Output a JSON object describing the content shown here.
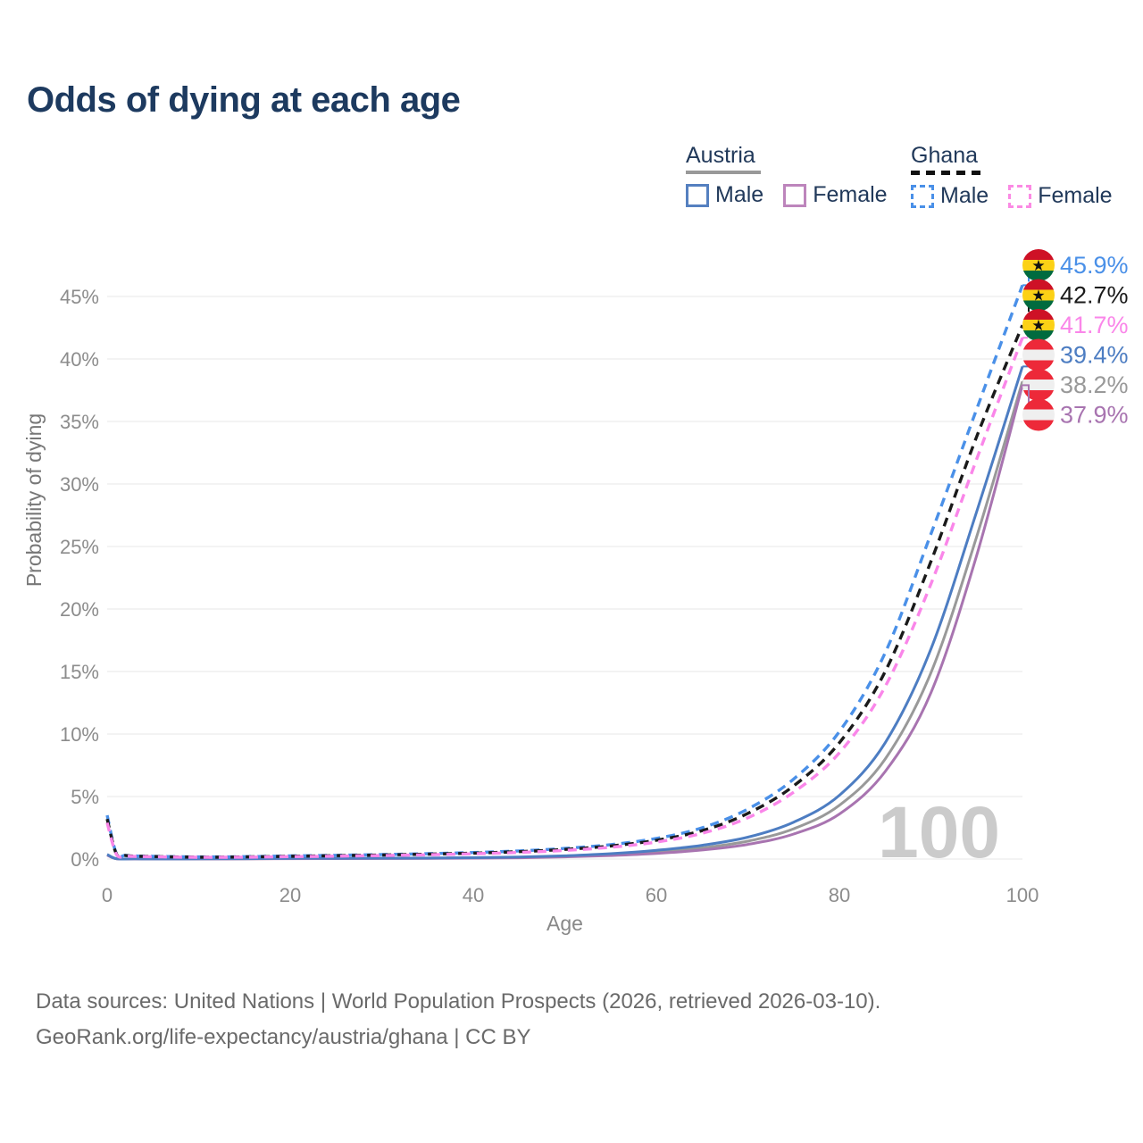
{
  "title": "Odds of dying at each age",
  "legend": {
    "groups": [
      {
        "country": "Austria",
        "line_style": "solid",
        "underline_color": "#999999",
        "items": [
          {
            "label": "Male",
            "color": "#5580c0"
          },
          {
            "label": "Female",
            "color": "#bd85bc"
          }
        ]
      },
      {
        "country": "Ghana",
        "line_style": "dashed",
        "underline_color": "#111111",
        "items": [
          {
            "label": "Male",
            "color": "#4a90e8"
          },
          {
            "label": "Female",
            "color": "#fb8ae4"
          }
        ]
      }
    ]
  },
  "watermark_age": "100",
  "footer": {
    "line1": "Data sources: United Nations | World Population Prospects (2026, retrieved 2026-03-10).",
    "line2": "GeoRank.org/life-expectancy/austria/ghana | CC BY"
  },
  "flags": {
    "ghana": {
      "bands": [
        "#ce1126",
        "#fcd116",
        "#006b3f"
      ],
      "star": "#111111"
    },
    "austria": {
      "bands": [
        "#ed2939",
        "#efefef",
        "#ed2939"
      ]
    }
  },
  "chart_data": {
    "type": "line",
    "title": "Odds of dying at each age",
    "xlabel": "Age",
    "ylabel": "Probability of dying",
    "x_range": [
      0,
      100
    ],
    "y_range_pct": [
      0,
      47
    ],
    "x_ticks": [
      "0",
      "20",
      "40",
      "60",
      "80",
      "100"
    ],
    "y_ticks": [
      "0%",
      "5%",
      "10%",
      "15%",
      "20%",
      "25%",
      "30%",
      "35%",
      "40%",
      "45%"
    ],
    "grid": "horizontal",
    "legend_position": "top-right",
    "axis_text_color": "#8c8c8c",
    "grid_color": "#ececec",
    "watermark_color": "#cbcbcb",
    "series": [
      {
        "id": "austria-all",
        "name": "Austria Both sexes",
        "country": "Austria",
        "sex": "Both",
        "line": "solid",
        "color": "#999999",
        "flag": "austria",
        "end_label": "38.2%",
        "end_value_pct": 38.2,
        "points_age_pct": [
          [
            0,
            0.34
          ],
          [
            1,
            0.027
          ],
          [
            3,
            0.012
          ],
          [
            5,
            0.01
          ],
          [
            10,
            0.01
          ],
          [
            15,
            0.022
          ],
          [
            20,
            0.046
          ],
          [
            25,
            0.05
          ],
          [
            30,
            0.056
          ],
          [
            35,
            0.066
          ],
          [
            40,
            0.087
          ],
          [
            45,
            0.13
          ],
          [
            50,
            0.21
          ],
          [
            55,
            0.35
          ],
          [
            60,
            0.56
          ],
          [
            65,
            0.89
          ],
          [
            70,
            1.43
          ],
          [
            75,
            2.42
          ],
          [
            80,
            4.3
          ],
          [
            85,
            8.0
          ],
          [
            90,
            14.9
          ],
          [
            95,
            25.8
          ],
          [
            100,
            38.2
          ]
        ]
      },
      {
        "id": "austria-female",
        "name": "Austria Female",
        "country": "Austria",
        "sex": "Female",
        "line": "solid",
        "color": "#a874b0",
        "flag": "austria",
        "end_label": "37.9%",
        "end_value_pct": 37.9,
        "points_age_pct": [
          [
            0,
            0.31
          ],
          [
            1,
            0.024
          ],
          [
            3,
            0.01
          ],
          [
            5,
            0.009
          ],
          [
            10,
            0.009
          ],
          [
            15,
            0.015
          ],
          [
            20,
            0.03
          ],
          [
            25,
            0.035
          ],
          [
            30,
            0.042
          ],
          [
            35,
            0.052
          ],
          [
            40,
            0.068
          ],
          [
            45,
            0.1
          ],
          [
            50,
            0.17
          ],
          [
            55,
            0.28
          ],
          [
            60,
            0.45
          ],
          [
            65,
            0.72
          ],
          [
            70,
            1.17
          ],
          [
            75,
            2.0
          ],
          [
            80,
            3.6
          ],
          [
            85,
            7.0
          ],
          [
            90,
            13.3
          ],
          [
            95,
            24.3
          ],
          [
            100,
            37.9
          ]
        ]
      },
      {
        "id": "austria-male",
        "name": "Austria Male",
        "country": "Austria",
        "sex": "Male",
        "line": "solid",
        "color": "#4d7dc2",
        "flag": "austria",
        "end_label": "39.4%",
        "end_value_pct": 39.4,
        "points_age_pct": [
          [
            0,
            0.37
          ],
          [
            1,
            0.03
          ],
          [
            3,
            0.013
          ],
          [
            5,
            0.01
          ],
          [
            10,
            0.012
          ],
          [
            15,
            0.03
          ],
          [
            20,
            0.06
          ],
          [
            25,
            0.06
          ],
          [
            30,
            0.07
          ],
          [
            35,
            0.08
          ],
          [
            40,
            0.11
          ],
          [
            45,
            0.16
          ],
          [
            50,
            0.26
          ],
          [
            55,
            0.43
          ],
          [
            60,
            0.7
          ],
          [
            65,
            1.1
          ],
          [
            70,
            1.75
          ],
          [
            75,
            2.95
          ],
          [
            80,
            5.1
          ],
          [
            85,
            9.3
          ],
          [
            90,
            16.8
          ],
          [
            95,
            27.8
          ],
          [
            100,
            39.4
          ]
        ]
      },
      {
        "id": "ghana-male",
        "name": "Ghana Male",
        "country": "Ghana",
        "sex": "Male",
        "line": "dashed",
        "color": "#4a90e8",
        "flag": "ghana",
        "end_label": "45.9%",
        "end_value_pct": 45.9,
        "points_age_pct": [
          [
            0,
            3.5
          ],
          [
            1,
            0.45
          ],
          [
            2,
            0.3
          ],
          [
            3,
            0.25
          ],
          [
            5,
            0.22
          ],
          [
            10,
            0.17
          ],
          [
            15,
            0.19
          ],
          [
            20,
            0.25
          ],
          [
            25,
            0.3
          ],
          [
            30,
            0.36
          ],
          [
            35,
            0.43
          ],
          [
            40,
            0.52
          ],
          [
            45,
            0.65
          ],
          [
            50,
            0.85
          ],
          [
            55,
            1.15
          ],
          [
            60,
            1.65
          ],
          [
            65,
            2.5
          ],
          [
            70,
            4.0
          ],
          [
            75,
            6.4
          ],
          [
            80,
            10.2
          ],
          [
            85,
            16.5
          ],
          [
            90,
            26.0
          ],
          [
            95,
            36.0
          ],
          [
            100,
            45.9
          ]
        ]
      },
      {
        "id": "ghana-all",
        "name": "Ghana Both sexes",
        "country": "Ghana",
        "sex": "Both",
        "line": "dashed",
        "color": "#1a1a1a",
        "flag": "ghana",
        "end_label": "42.7%",
        "end_value_pct": 42.7,
        "points_age_pct": [
          [
            0,
            3.2
          ],
          [
            1,
            0.42
          ],
          [
            2,
            0.28
          ],
          [
            3,
            0.23
          ],
          [
            5,
            0.2
          ],
          [
            10,
            0.15
          ],
          [
            15,
            0.17
          ],
          [
            20,
            0.22
          ],
          [
            25,
            0.27
          ],
          [
            30,
            0.32
          ],
          [
            35,
            0.39
          ],
          [
            40,
            0.47
          ],
          [
            45,
            0.59
          ],
          [
            50,
            0.77
          ],
          [
            55,
            1.04
          ],
          [
            60,
            1.5
          ],
          [
            65,
            2.27
          ],
          [
            70,
            3.65
          ],
          [
            75,
            5.85
          ],
          [
            80,
            9.3
          ],
          [
            85,
            15.0
          ],
          [
            90,
            23.8
          ],
          [
            95,
            33.8
          ],
          [
            100,
            42.7
          ]
        ]
      },
      {
        "id": "ghana-female",
        "name": "Ghana Female",
        "country": "Ghana",
        "sex": "Female",
        "line": "dashed",
        "color": "#fa86e9",
        "flag": "ghana",
        "end_label": "41.7%",
        "end_value_pct": 41.7,
        "points_age_pct": [
          [
            0,
            2.9
          ],
          [
            1,
            0.38
          ],
          [
            2,
            0.25
          ],
          [
            3,
            0.21
          ],
          [
            5,
            0.18
          ],
          [
            10,
            0.14
          ],
          [
            15,
            0.15
          ],
          [
            20,
            0.19
          ],
          [
            25,
            0.23
          ],
          [
            30,
            0.28
          ],
          [
            35,
            0.34
          ],
          [
            40,
            0.42
          ],
          [
            45,
            0.53
          ],
          [
            50,
            0.69
          ],
          [
            55,
            0.94
          ],
          [
            60,
            1.36
          ],
          [
            65,
            2.06
          ],
          [
            70,
            3.3
          ],
          [
            75,
            5.35
          ],
          [
            80,
            8.5
          ],
          [
            85,
            13.8
          ],
          [
            90,
            22.0
          ],
          [
            95,
            32.0
          ],
          [
            100,
            41.7
          ]
        ]
      }
    ]
  }
}
